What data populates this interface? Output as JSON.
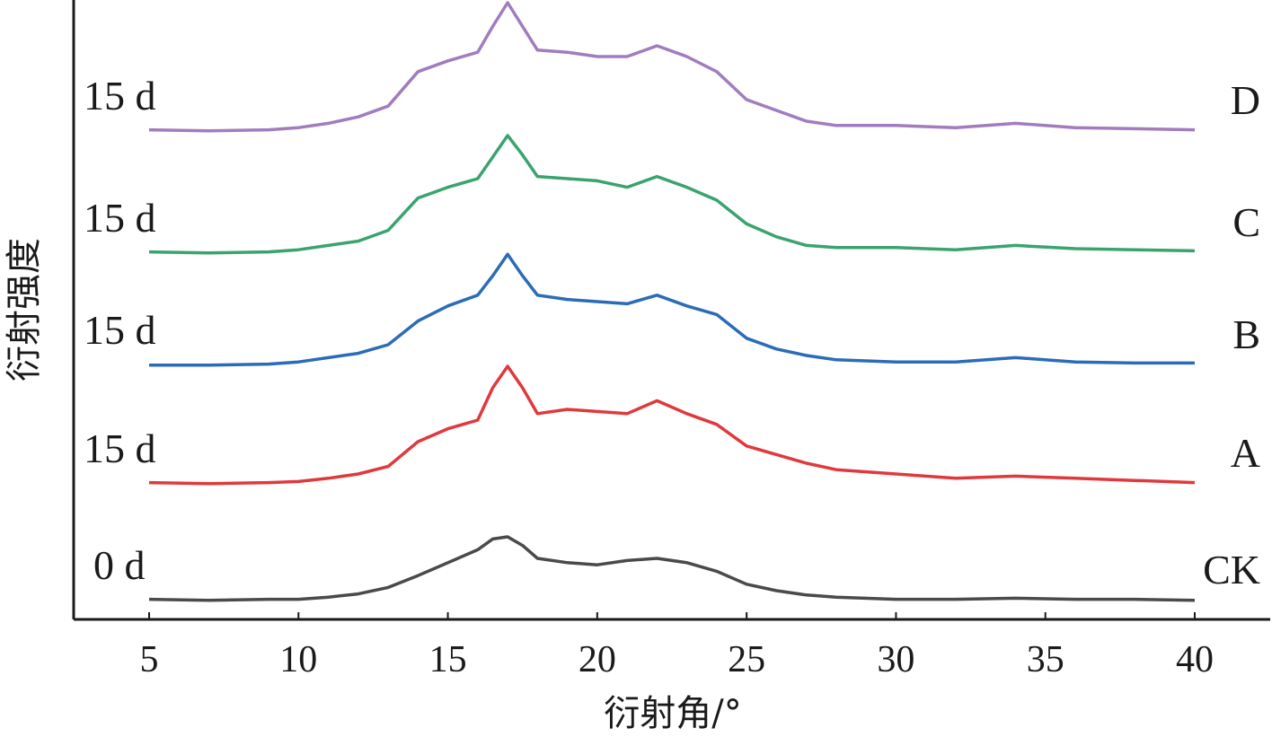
{
  "chart_data": {
    "type": "line",
    "title": "",
    "xlabel": "衍射角/°",
    "ylabel": "衍射强度",
    "xlim": [
      2.5,
      42.5
    ],
    "xticks": [
      5,
      10,
      15,
      20,
      25,
      30,
      35,
      40
    ],
    "y_ticks_shown": false,
    "grid": false,
    "legend": "none",
    "x": [
      5,
      7,
      9,
      10,
      11,
      12,
      13,
      14,
      15,
      16,
      16.5,
      17,
      17.5,
      18,
      19,
      20,
      21,
      22,
      23,
      24,
      25,
      26,
      27,
      28,
      30,
      32,
      34,
      36,
      38,
      40
    ],
    "series": [
      {
        "name": "CK",
        "time_label": "0 d",
        "color": "#4a4a4a",
        "values": [
          2,
          1,
          2,
          2,
          4,
          7,
          13,
          24,
          36,
          48,
          58,
          60,
          52,
          40,
          36,
          34,
          38,
          40,
          36,
          28,
          16,
          10,
          6,
          4,
          2,
          2,
          3,
          2,
          2,
          1
        ]
      },
      {
        "name": "A",
        "time_label": "15 d",
        "color": "#e0393d",
        "values": [
          2,
          1,
          2,
          3,
          6,
          10,
          17,
          40,
          52,
          60,
          90,
          110,
          90,
          66,
          70,
          68,
          66,
          78,
          66,
          56,
          36,
          28,
          20,
          14,
          10,
          6,
          8,
          6,
          4,
          2
        ]
      },
      {
        "name": "B",
        "time_label": "15 d",
        "color": "#2b6cb8",
        "values": [
          1,
          1,
          2,
          4,
          8,
          12,
          20,
          42,
          56,
          66,
          84,
          104,
          84,
          66,
          62,
          60,
          58,
          66,
          56,
          48,
          26,
          16,
          10,
          6,
          4,
          4,
          8,
          4,
          3,
          3
        ]
      },
      {
        "name": "C",
        "time_label": "15 d",
        "color": "#3aa36e",
        "values": [
          2,
          1,
          2,
          4,
          8,
          12,
          22,
          52,
          62,
          70,
          90,
          110,
          92,
          72,
          70,
          68,
          62,
          72,
          62,
          50,
          28,
          16,
          8,
          6,
          6,
          4,
          8,
          5,
          4,
          3
        ]
      },
      {
        "name": "D",
        "time_label": "15 d",
        "color": "#a17cbf",
        "values": [
          2,
          1,
          2,
          4,
          8,
          14,
          24,
          56,
          66,
          74,
          98,
          120,
          98,
          76,
          74,
          70,
          70,
          80,
          70,
          56,
          30,
          20,
          10,
          6,
          6,
          4,
          8,
          4,
          3,
          2
        ]
      }
    ]
  }
}
